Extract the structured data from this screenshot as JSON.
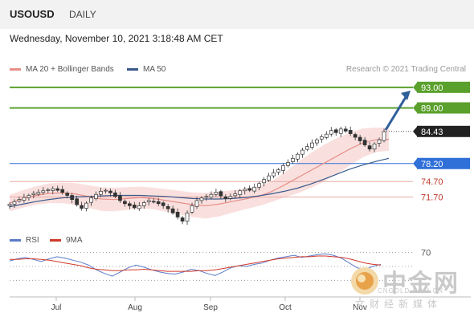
{
  "header": {
    "symbol": "USOUSD",
    "period": "DAILY"
  },
  "timestamp": "Wednesday, November 10, 2021 3:18:48 AM CET",
  "credit": "Research © 2021 Trading Central",
  "legend": [
    {
      "label": "MA 20 + Bollinger Bands",
      "color": "#e8908a"
    },
    {
      "label": "MA 50",
      "color": "#3a5a8c"
    }
  ],
  "rsi_legend": [
    {
      "label": "RSI",
      "color": "#5a7cc8"
    },
    {
      "label": "9MA",
      "color": "#d0392b"
    }
  ],
  "chart_data": {
    "type": "candlestick",
    "title": "USOUSD",
    "ylim": [
      66,
      95
    ],
    "x_tick_labels": [
      "Jul",
      "Aug",
      "Sep",
      "Oct",
      "Nov"
    ],
    "levels": [
      {
        "value": 93.0,
        "label": "93.00",
        "style": "tag",
        "color": "#5aa02c"
      },
      {
        "value": 89.0,
        "label": "89.00",
        "style": "tag",
        "color": "#5aa02c"
      },
      {
        "value": 84.43,
        "label": "84.43",
        "style": "tag",
        "color": "#222222"
      },
      {
        "value": 78.2,
        "label": "78.20",
        "style": "tag",
        "color": "#2f6fd8"
      },
      {
        "value": 74.7,
        "label": "74.70",
        "style": "text",
        "color": "#c0392b"
      },
      {
        "value": 71.7,
        "label": "71.70",
        "style": "text",
        "color": "#c0392b"
      }
    ],
    "price_path": [
      70.3,
      70.8,
      71.2,
      71.6,
      72.0,
      72.4,
      72.6,
      72.9,
      73.1,
      73.3,
      73.0,
      72.6,
      72.0,
      71.2,
      70.2,
      69.5,
      70.5,
      71.5,
      72.2,
      72.8,
      73.0,
      72.5,
      71.8,
      71.0,
      70.4,
      70.0,
      69.6,
      70.0,
      70.6,
      71.0,
      70.8,
      70.4,
      70.0,
      69.4,
      68.6,
      67.8,
      67.0,
      68.6,
      70.0,
      71.0,
      71.5,
      71.8,
      72.2,
      72.6,
      71.9,
      71.4,
      71.8,
      72.3,
      72.9,
      73.2,
      73.0,
      73.6,
      74.3,
      75.1,
      75.8,
      76.4,
      77.0,
      77.8,
      78.4,
      79.2,
      80.0,
      80.8,
      81.5,
      82.2,
      82.8,
      83.4,
      83.9,
      84.6,
      84.2,
      84.9,
      84.5,
      84.0,
      83.3,
      82.6,
      81.8,
      81.0,
      82.0,
      82.8,
      84.4
    ],
    "ma50_path": [
      69.8,
      70.3,
      70.8,
      71.2,
      71.5,
      71.7,
      71.8,
      71.9,
      72.0,
      72.0,
      72.0,
      71.9,
      71.8,
      71.6,
      71.4,
      71.3,
      71.3,
      71.4,
      71.6,
      71.9,
      72.3,
      72.8,
      73.4,
      74.2,
      75.1,
      76.1,
      77.1,
      77.9,
      78.6,
      79.2
    ],
    "ma20_path": [
      70.5,
      71.3,
      72.0,
      72.4,
      72.5,
      72.3,
      71.8,
      71.3,
      71.2,
      71.4,
      71.6,
      71.4,
      71.0,
      70.6,
      70.2,
      70.0,
      70.3,
      70.8,
      71.3,
      71.8,
      72.7,
      74.0,
      75.4,
      76.8,
      78.2,
      79.6,
      81.0,
      82.2,
      82.8,
      82.9
    ],
    "bb_width_path": [
      1.6,
      1.7,
      1.8,
      1.9,
      2.0,
      2.1,
      2.2,
      2.3,
      2.3,
      2.2,
      2.1,
      2.1,
      2.2,
      2.3,
      2.4,
      2.5,
      2.4,
      2.2,
      2.0,
      1.9,
      2.0,
      2.4,
      3.0,
      3.4,
      3.6,
      3.5,
      3.2,
      2.8,
      2.4,
      2.2
    ],
    "rsi": {
      "ylim": [
        20,
        80
      ],
      "ref_level": {
        "value": 70,
        "label": "70"
      },
      "rsi_path": [
        58,
        61,
        63,
        60,
        57,
        61,
        64,
        62,
        59,
        56,
        52,
        45,
        40,
        36,
        42,
        48,
        52,
        49,
        45,
        42,
        40,
        39,
        42,
        46,
        44,
        40,
        37,
        42,
        48,
        51,
        50,
        53,
        55,
        59,
        62,
        64,
        66,
        63,
        65,
        67,
        68,
        66,
        62,
        55,
        48,
        46,
        50,
        53
      ],
      "ma9_path": [
        60,
        60,
        61,
        61,
        60,
        59,
        57,
        55,
        53,
        51,
        48,
        46,
        45,
        44,
        44,
        45,
        45,
        46,
        45,
        44,
        43,
        43,
        43,
        43,
        44,
        44,
        45,
        47,
        49,
        51,
        53,
        55,
        57,
        59,
        61,
        62,
        63,
        64,
        64,
        65,
        65,
        64,
        63,
        61,
        58,
        55,
        53,
        52
      ]
    }
  }
}
